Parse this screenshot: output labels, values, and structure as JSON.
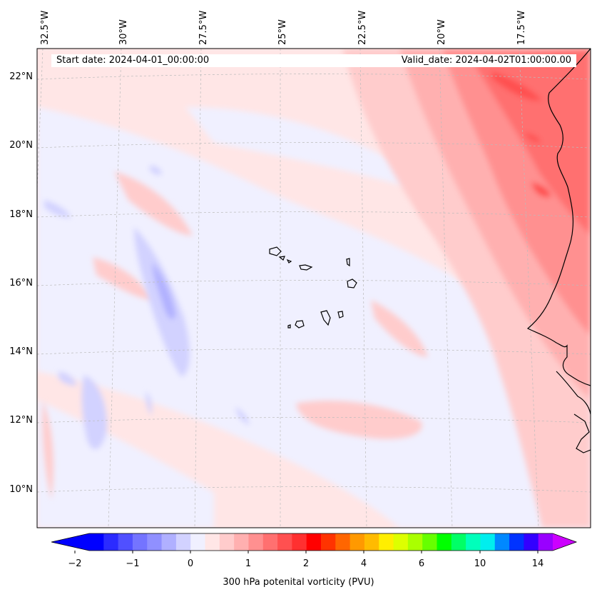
{
  "header": {
    "start_date": "Start date: 2024-04-01_00:00:00",
    "valid_date": "Valid_date: 2024-04-02T01:00:00.00"
  },
  "map": {
    "projection": "conic",
    "extent": {
      "lon_min": -33.0,
      "lon_max": -15.5,
      "lat_min": 9.0,
      "lat_max": 22.5
    },
    "lon_ticks": [
      {
        "value": -32.5,
        "label": "32.5°W"
      },
      {
        "value": -30.0,
        "label": "30°W"
      },
      {
        "value": -27.5,
        "label": "27.5°W"
      },
      {
        "value": -25.0,
        "label": "25°W"
      },
      {
        "value": -22.5,
        "label": "22.5°W"
      },
      {
        "value": -20.0,
        "label": "20°W"
      },
      {
        "value": -17.5,
        "label": "17.5°W"
      }
    ],
    "lat_ticks": [
      {
        "value": 22,
        "label": "22°N"
      },
      {
        "value": 20,
        "label": "20°N"
      },
      {
        "value": 18,
        "label": "18°N"
      },
      {
        "value": 16,
        "label": "16°N"
      },
      {
        "value": 14,
        "label": "14°N"
      },
      {
        "value": 12,
        "label": "12°N"
      },
      {
        "value": 10,
        "label": "10°N"
      }
    ],
    "gridlines": true,
    "coastlines": true
  },
  "colorbar": {
    "label": "300 hPa potenital vorticity (PVU)",
    "colors": [
      "#0000ff",
      "#2b2bff",
      "#5050ff",
      "#7474ff",
      "#9090ff",
      "#b0b0ff",
      "#d2d2ff",
      "#f0f0ff",
      "#ffe6e6",
      "#ffcccc",
      "#ffb0b0",
      "#ff9090",
      "#ff7070",
      "#ff5050",
      "#ff3030",
      "#ff0000",
      "#ff3300",
      "#ff6600",
      "#ff9900",
      "#ffbb00",
      "#ffee00",
      "#ddff00",
      "#aaff00",
      "#66ff00",
      "#00ff00",
      "#00ff66",
      "#00ffbb",
      "#00eeee",
      "#0088ff",
      "#0033ff",
      "#3300ff",
      "#9900ff"
    ],
    "under_color": "#0000ff",
    "over_color": "#cc00ff",
    "ticks": [
      "−2",
      "−1",
      "0",
      "1",
      "2",
      "4",
      "6",
      "10",
      "14"
    ]
  }
}
